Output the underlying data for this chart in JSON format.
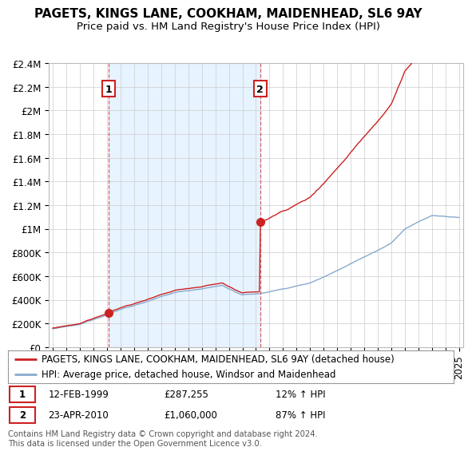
{
  "title": "PAGETS, KINGS LANE, COOKHAM, MAIDENHEAD, SL6 9AY",
  "subtitle": "Price paid vs. HM Land Registry's House Price Index (HPI)",
  "ylim": [
    0,
    2400000
  ],
  "yticks": [
    0,
    200000,
    400000,
    600000,
    800000,
    1000000,
    1200000,
    1400000,
    1600000,
    1800000,
    2000000,
    2200000,
    2400000
  ],
  "ytick_labels": [
    "£0",
    "£200K",
    "£400K",
    "£600K",
    "£800K",
    "£1M",
    "£1.2M",
    "£1.4M",
    "£1.6M",
    "£1.8M",
    "£2M",
    "£2.2M",
    "£2.4M"
  ],
  "xlim_left": 1994.7,
  "xlim_right": 2025.3,
  "sale1_year": 1999.12,
  "sale1_price": 287255,
  "sale2_year": 2010.31,
  "sale2_price": 1060000,
  "red_line_color": "#cc2222",
  "blue_line_color": "#88aacc",
  "shade_color": "#ddeeff",
  "vline_color": "#cc4444",
  "box_edge_color": "#cc2222",
  "legend_line1": "PAGETS, KINGS LANE, COOKHAM, MAIDENHEAD, SL6 9AY (detached house)",
  "legend_line2": "HPI: Average price, detached house, Windsor and Maidenhead",
  "sale1_date": "12-FEB-1999",
  "sale1_pct": "12%",
  "sale2_date": "23-APR-2010",
  "sale2_pct": "87%",
  "footer": "Contains HM Land Registry data © Crown copyright and database right 2024.\nThis data is licensed under the Open Government Licence v3.0.",
  "background_color": "#ffffff",
  "grid_color": "#cccccc",
  "title_fontsize": 11,
  "subtitle_fontsize": 9.5,
  "tick_fontsize": 8.5,
  "legend_fontsize": 8.5
}
